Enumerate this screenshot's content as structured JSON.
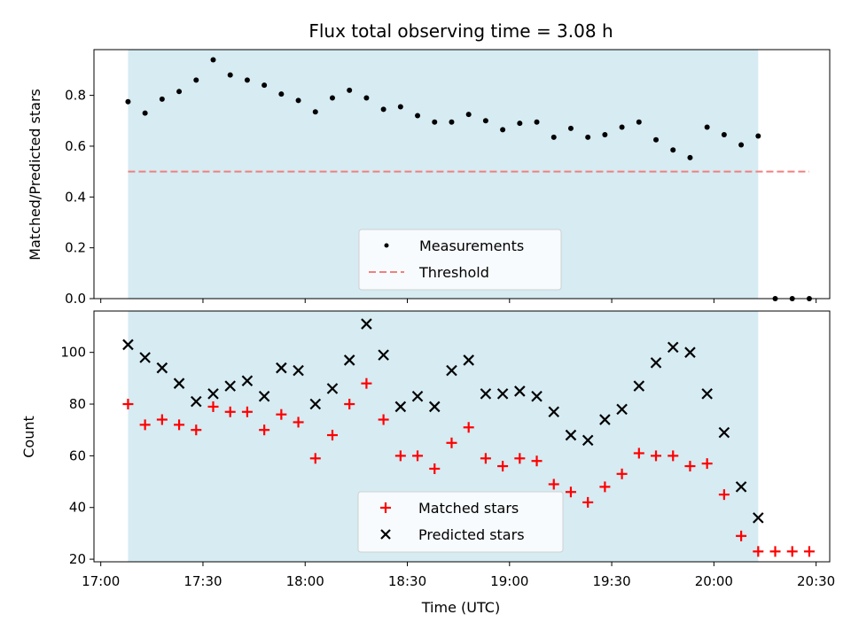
{
  "chart_data": [
    {
      "type": "scatter",
      "title": "Flux total observing time = 3.08 h",
      "ylabel": "Matched/Predicted stars",
      "xlim": [
        "16:58",
        "20:34"
      ],
      "ylim": [
        0,
        0.98
      ],
      "yticks": [
        "0.0",
        "0.2",
        "0.4",
        "0.6",
        "0.8"
      ],
      "shaded_span": [
        "17:08",
        "20:13"
      ],
      "series": [
        {
          "name": "Measurements",
          "color": "#000000",
          "marker": "dot",
          "points": [
            [
              "17:08",
              0.775
            ],
            [
              "17:13",
              0.73
            ],
            [
              "17:18",
              0.785
            ],
            [
              "17:23",
              0.815
            ],
            [
              "17:28",
              0.86
            ],
            [
              "17:33",
              0.94
            ],
            [
              "17:38",
              0.88
            ],
            [
              "17:43",
              0.86
            ],
            [
              "17:48",
              0.84
            ],
            [
              "17:53",
              0.805
            ],
            [
              "17:58",
              0.78
            ],
            [
              "18:03",
              0.735
            ],
            [
              "18:08",
              0.79
            ],
            [
              "18:13",
              0.82
            ],
            [
              "18:18",
              0.79
            ],
            [
              "18:23",
              0.745
            ],
            [
              "18:28",
              0.755
            ],
            [
              "18:33",
              0.72
            ],
            [
              "18:38",
              0.695
            ],
            [
              "18:43",
              0.695
            ],
            [
              "18:48",
              0.725
            ],
            [
              "18:53",
              0.7
            ],
            [
              "18:58",
              0.665
            ],
            [
              "19:03",
              0.69
            ],
            [
              "19:08",
              0.695
            ],
            [
              "19:13",
              0.635
            ],
            [
              "19:18",
              0.67
            ],
            [
              "19:23",
              0.635
            ],
            [
              "19:28",
              0.645
            ],
            [
              "19:33",
              0.675
            ],
            [
              "19:38",
              0.695
            ],
            [
              "19:43",
              0.625
            ],
            [
              "19:48",
              0.585
            ],
            [
              "19:53",
              0.555
            ],
            [
              "19:58",
              0.675
            ],
            [
              "20:03",
              0.645
            ],
            [
              "20:08",
              0.605
            ],
            [
              "20:13",
              0.64
            ],
            [
              "20:18",
              0.0
            ],
            [
              "20:23",
              0.0
            ],
            [
              "20:28",
              0.0
            ]
          ]
        },
        {
          "name": "Threshold",
          "color": "#f08080",
          "style": "dashed",
          "points": [
            [
              "17:08",
              0.5
            ],
            [
              "20:28",
              0.5
            ]
          ]
        }
      ],
      "legend_position": "bottom-center"
    },
    {
      "type": "scatter",
      "xlabel": "Time (UTC)",
      "ylabel": "Count",
      "xlim": [
        "16:58",
        "20:34"
      ],
      "ylim": [
        19,
        116
      ],
      "xticks": [
        "17:00",
        "17:30",
        "18:00",
        "18:30",
        "19:00",
        "19:30",
        "20:00",
        "20:30"
      ],
      "yticks": [
        "20",
        "40",
        "60",
        "80",
        "100"
      ],
      "shaded_span": [
        "17:08",
        "20:13"
      ],
      "series": [
        {
          "name": "Matched stars",
          "color": "#ff0000",
          "marker": "plus",
          "points": [
            [
              "17:08",
              80
            ],
            [
              "17:13",
              72
            ],
            [
              "17:18",
              74
            ],
            [
              "17:23",
              72
            ],
            [
              "17:28",
              70
            ],
            [
              "17:33",
              79
            ],
            [
              "17:38",
              77
            ],
            [
              "17:43",
              77
            ],
            [
              "17:48",
              70
            ],
            [
              "17:53",
              76
            ],
            [
              "17:58",
              73
            ],
            [
              "18:03",
              59
            ],
            [
              "18:08",
              68
            ],
            [
              "18:13",
              80
            ],
            [
              "18:18",
              88
            ],
            [
              "18:23",
              74
            ],
            [
              "18:28",
              60
            ],
            [
              "18:33",
              60
            ],
            [
              "18:38",
              55
            ],
            [
              "18:43",
              65
            ],
            [
              "18:48",
              71
            ],
            [
              "18:53",
              59
            ],
            [
              "18:58",
              56
            ],
            [
              "19:03",
              59
            ],
            [
              "19:08",
              58
            ],
            [
              "19:13",
              49
            ],
            [
              "19:18",
              46
            ],
            [
              "19:23",
              42
            ],
            [
              "19:28",
              48
            ],
            [
              "19:33",
              53
            ],
            [
              "19:38",
              61
            ],
            [
              "19:43",
              60
            ],
            [
              "19:48",
              60
            ],
            [
              "19:53",
              56
            ],
            [
              "19:58",
              57
            ],
            [
              "20:03",
              45
            ],
            [
              "20:08",
              29
            ],
            [
              "20:13",
              23
            ],
            [
              "20:18",
              23
            ],
            [
              "20:23",
              23
            ],
            [
              "20:28",
              23
            ]
          ]
        },
        {
          "name": "Predicted stars",
          "color": "#000000",
          "marker": "x",
          "points": [
            [
              "17:08",
              103
            ],
            [
              "17:13",
              98
            ],
            [
              "17:18",
              94
            ],
            [
              "17:23",
              88
            ],
            [
              "17:28",
              81
            ],
            [
              "17:33",
              84
            ],
            [
              "17:38",
              87
            ],
            [
              "17:43",
              89
            ],
            [
              "17:48",
              83
            ],
            [
              "17:53",
              94
            ],
            [
              "17:58",
              93
            ],
            [
              "18:03",
              80
            ],
            [
              "18:08",
              86
            ],
            [
              "18:13",
              97
            ],
            [
              "18:18",
              111
            ],
            [
              "18:23",
              99
            ],
            [
              "18:28",
              79
            ],
            [
              "18:33",
              83
            ],
            [
              "18:38",
              79
            ],
            [
              "18:43",
              93
            ],
            [
              "18:48",
              97
            ],
            [
              "18:53",
              84
            ],
            [
              "18:58",
              84
            ],
            [
              "19:03",
              85
            ],
            [
              "19:08",
              83
            ],
            [
              "19:13",
              77
            ],
            [
              "19:18",
              68
            ],
            [
              "19:23",
              66
            ],
            [
              "19:28",
              74
            ],
            [
              "19:33",
              78
            ],
            [
              "19:38",
              87
            ],
            [
              "19:43",
              96
            ],
            [
              "19:48",
              102
            ],
            [
              "19:53",
              100
            ],
            [
              "19:58",
              84
            ],
            [
              "20:03",
              69
            ],
            [
              "20:08",
              48
            ],
            [
              "20:13",
              36
            ]
          ]
        }
      ],
      "legend_position": "bottom-center"
    }
  ],
  "colors": {
    "span": "#add8e6",
    "threshold": "#f08080",
    "matched": "#ff0000",
    "predicted": "#000000"
  }
}
